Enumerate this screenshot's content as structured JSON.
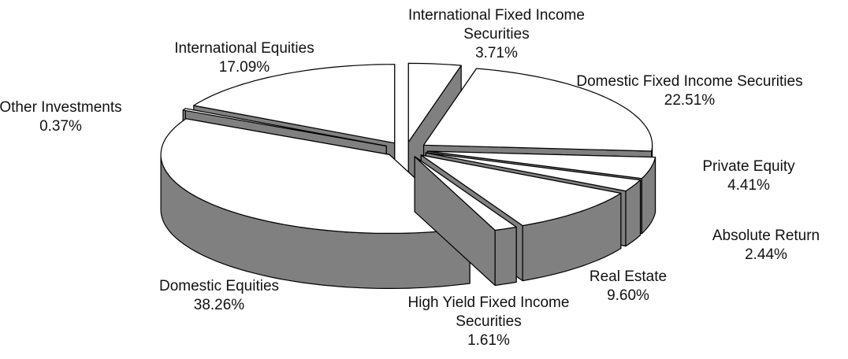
{
  "chart_data": {
    "type": "pie3d",
    "categories": [
      "International Fixed Income Securities",
      "Domestic Fixed Income Securities",
      "Private Equity",
      "Absolute Return",
      "Real Estate",
      "High Yield Fixed Income Securities",
      "Domestic Equities",
      "Other Investments",
      "International Equities"
    ],
    "values": [
      3.71,
      22.51,
      4.41,
      2.44,
      9.6,
      1.61,
      38.26,
      0.37,
      17.09
    ],
    "value_labels": [
      "3.71%",
      "22.51%",
      "4.41%",
      "2.44%",
      "9.60%",
      "1.61%",
      "38.26%",
      "0.37%",
      "17.09%"
    ],
    "color": "#ffffff",
    "side_color": "#808080"
  }
}
